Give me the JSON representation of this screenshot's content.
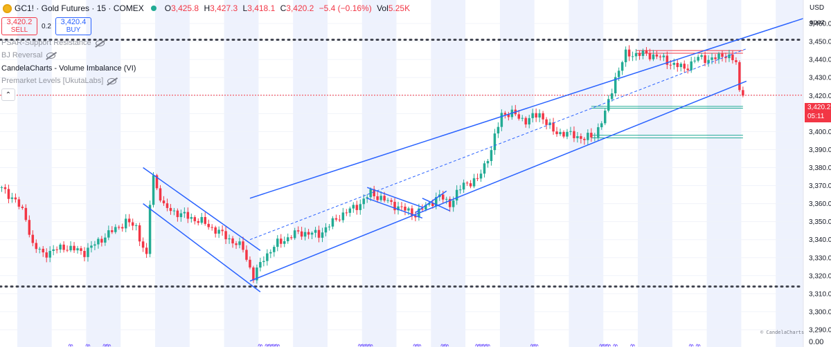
{
  "header": {
    "symbol": "GC1!",
    "name": "Gold Futures",
    "interval": "15",
    "exchange": "COMEX",
    "title_text": "GC1! · Gold Futures · 15 · COMEX",
    "logo_icon": "gold-coin-icon",
    "status_icon": "market-open-dot-icon",
    "ohlc": {
      "o_label": "O",
      "o_value": "3,425.8",
      "h_label": "H",
      "h_value": "3,427.3",
      "l_label": "L",
      "l_value": "3,418.1",
      "c_label": "C",
      "c_value": "3,420.2",
      "change": "−5.4 (−0.16%)",
      "vol_label": "Vol",
      "vol_value": "5.25K"
    }
  },
  "trade": {
    "sell_price": "3,420.2",
    "sell_label": "SELL",
    "spread": "0.2",
    "buy_price": "3,420.4",
    "buy_label": "BUY"
  },
  "indicators": [
    {
      "label": "PSAR-Support Resistance",
      "hidden": true
    },
    {
      "label": "BJ Reversal",
      "hidden": true
    },
    {
      "label": "CandelaCharts - Volume Imbalance (VI)",
      "hidden": false
    },
    {
      "label": "Premarket Levels [UkutaLabs]",
      "hidden": true
    }
  ],
  "axis": {
    "currency": "USD",
    "unit_note": "apoz",
    "last_price": "3,420.2",
    "countdown": "05:11",
    "bottom_value": "0.00"
  },
  "credit": "© CandelaCharts",
  "colors": {
    "up": "#22ab94",
    "down": "#f23645",
    "channel": "#2962ff",
    "session_bg": "#eef2fd",
    "dotted": "#434651",
    "price_line": "#f23645"
  },
  "chart_data": {
    "type": "candlestick",
    "title": "GC1! · Gold Futures · 15 · COMEX",
    "ylabel": "USD",
    "ylim": [
      3285,
      3470
    ],
    "y_ticks": [
      3460,
      3450,
      3440,
      3430,
      3420,
      3410,
      3400,
      3390,
      3380,
      3370,
      3360,
      3350,
      3340,
      3330,
      3320,
      3310,
      3300,
      3290
    ],
    "y_tick_labels": [
      "3,460.0",
      "3,450.0",
      "3,440.0",
      "3,430.0",
      "3,420.0",
      "3,410.0",
      "3,400.0",
      "3,390.0",
      "3,380.0",
      "3,370.0",
      "3,360.0",
      "3,350.0",
      "3,340.0",
      "3,330.0",
      "3,320.0",
      "3,310.0",
      "3,300.0",
      "3,290.0"
    ],
    "bar_count": 233,
    "key_closes": [
      [
        0,
        3368
      ],
      [
        4,
        3362
      ],
      [
        7,
        3352
      ],
      [
        9,
        3337
      ],
      [
        12,
        3332
      ],
      [
        18,
        3336
      ],
      [
        24,
        3333
      ],
      [
        30,
        3342
      ],
      [
        36,
        3350
      ],
      [
        39,
        3347
      ],
      [
        42,
        3330
      ],
      [
        43,
        3360
      ],
      [
        44,
        3375
      ],
      [
        47,
        3358
      ],
      [
        52,
        3354
      ],
      [
        58,
        3350
      ],
      [
        64,
        3343
      ],
      [
        70,
        3335
      ],
      [
        73,
        3319
      ],
      [
        76,
        3330
      ],
      [
        80,
        3338
      ],
      [
        86,
        3344
      ],
      [
        92,
        3343
      ],
      [
        98,
        3353
      ],
      [
        104,
        3360
      ],
      [
        107,
        3366
      ],
      [
        114,
        3359
      ],
      [
        120,
        3354
      ],
      [
        124,
        3360
      ],
      [
        127,
        3364
      ],
      [
        130,
        3360
      ],
      [
        134,
        3371
      ],
      [
        138,
        3373
      ],
      [
        142,
        3390
      ],
      [
        145,
        3410
      ],
      [
        148,
        3410
      ],
      [
        152,
        3406
      ],
      [
        156,
        3410
      ],
      [
        160,
        3400
      ],
      [
        166,
        3398
      ],
      [
        169,
        3396
      ],
      [
        172,
        3398
      ],
      [
        175,
        3410
      ],
      [
        178,
        3430
      ],
      [
        181,
        3443
      ],
      [
        186,
        3443
      ],
      [
        190,
        3442
      ],
      [
        194,
        3438
      ],
      [
        198,
        3435
      ],
      [
        202,
        3441
      ],
      [
        206,
        3440
      ],
      [
        210,
        3443
      ],
      [
        213,
        3438
      ],
      [
        214,
        3422
      ],
      [
        215,
        3420
      ]
    ],
    "horizontal_levels": [
      {
        "price": 3451,
        "style": "dotted"
      },
      {
        "price": 3314,
        "style": "dotted"
      },
      {
        "price": 3420.2,
        "style": "price-line"
      },
      {
        "price": 3445,
        "style": "level-red"
      },
      {
        "price": 3443.5,
        "style": "level-red"
      },
      {
        "price": 3414,
        "style": "level-green"
      },
      {
        "price": 3413,
        "style": "level-green"
      },
      {
        "price": 3398,
        "style": "level-green"
      },
      {
        "price": 3396.5,
        "style": "level-green"
      }
    ],
    "trendlines": [
      {
        "name": "channel-upper",
        "points": [
          [
            72,
            3363
          ],
          [
            236,
            3465
          ]
        ]
      },
      {
        "name": "channel-lower",
        "points": [
          [
            72,
            3317
          ],
          [
            216,
            3428
          ]
        ]
      },
      {
        "name": "channel-mid",
        "points": [
          [
            72,
            3340
          ],
          [
            216,
            3446
          ]
        ],
        "dashed": true
      },
      {
        "name": "down-channel-upper",
        "points": [
          [
            41,
            3380
          ],
          [
            75,
            3334
          ]
        ]
      },
      {
        "name": "down-channel-lower",
        "points": [
          [
            41,
            3360
          ],
          [
            75,
            3311
          ]
        ]
      },
      {
        "name": "flag-upper",
        "points": [
          [
            106,
            3369
          ],
          [
            122,
            3358
          ]
        ]
      },
      {
        "name": "flag-lower",
        "points": [
          [
            106,
            3363
          ],
          [
            122,
            3352
          ]
        ]
      },
      {
        "name": "pennant-upper",
        "points": [
          [
            120,
            3355
          ],
          [
            129,
            3367
          ]
        ]
      },
      {
        "name": "pennant-lower",
        "points": [
          [
            122,
            3363
          ],
          [
            130,
            3356
          ]
        ]
      }
    ]
  }
}
